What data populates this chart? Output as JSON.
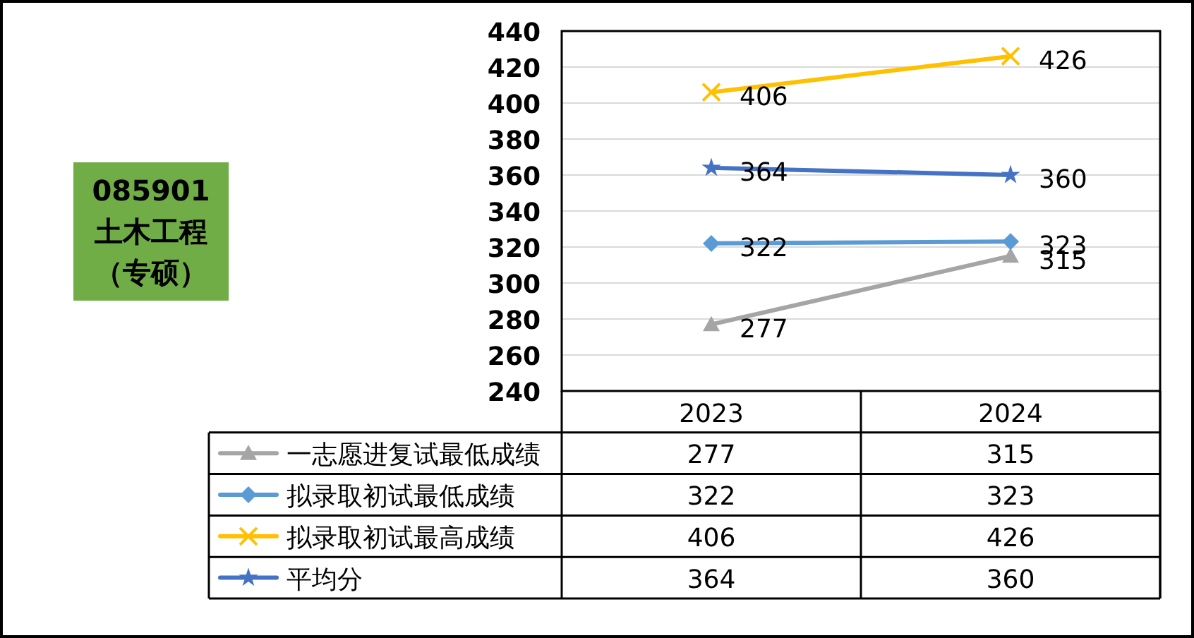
{
  "chart_data": {
    "type": "line",
    "title": "085901",
    "subtitle": "土木工程（专硕）",
    "categories": [
      "2023",
      "2024"
    ],
    "series": [
      {
        "name": "一志愿进复试最低成绩",
        "color": "#a5a5a5",
        "marker": "triangle",
        "values": [
          277,
          315
        ]
      },
      {
        "name": "拟录取初试最低成绩",
        "color": "#5b9bd5",
        "marker": "diamond",
        "values": [
          322,
          323
        ]
      },
      {
        "name": "拟录取初试最高成绩",
        "color": "#ffc000",
        "marker": "cross",
        "values": [
          406,
          426
        ]
      },
      {
        "name": "平均分",
        "color": "#4472c4",
        "marker": "star",
        "values": [
          364,
          360
        ]
      }
    ],
    "annotations": [
      {
        "text": "277",
        "x": "2023",
        "y": 277
      },
      {
        "text": "315",
        "x": "2024",
        "y": 315
      },
      {
        "text": "322",
        "x": "2023",
        "y": 322
      },
      {
        "text": "323",
        "x": "2024",
        "y": 323
      },
      {
        "text": "406",
        "x": "2023",
        "y": 406
      },
      {
        "text": "426",
        "x": "2024",
        "y": 426
      },
      {
        "text": "364",
        "x": "2023",
        "y": 364
      },
      {
        "text": "360",
        "x": "2024",
        "y": 360
      }
    ],
    "ylim": [
      240,
      440
    ],
    "yticks": [
      240,
      260,
      280,
      300,
      320,
      340,
      360,
      380,
      400,
      420,
      440
    ],
    "grid": "y",
    "data_labels": true,
    "legend": "bottom"
  }
}
